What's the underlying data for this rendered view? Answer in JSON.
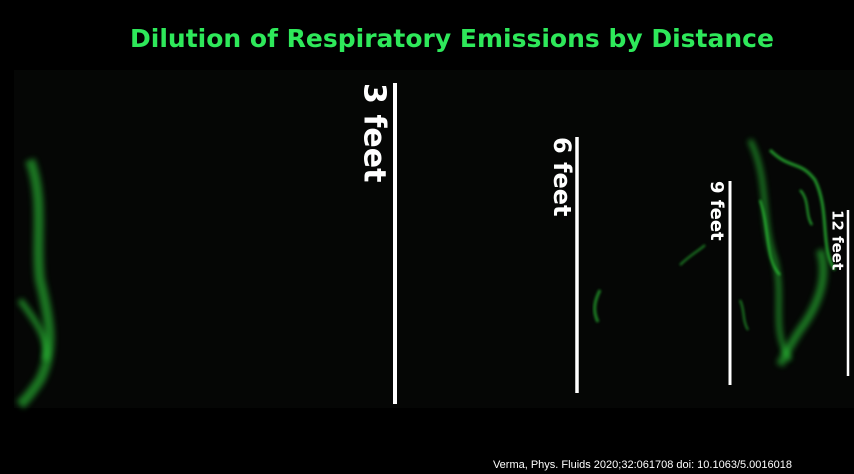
{
  "title": "Dilution of Respiratory Emissions by Distance",
  "markers": [
    {
      "label": "3 feet"
    },
    {
      "label": "6 feet"
    },
    {
      "label": "9 feet"
    },
    {
      "label": "12 feet"
    }
  ],
  "citation": "Verma, Phys. Fluids 2020;32:061708 doi: 10.1063/5.0016018"
}
